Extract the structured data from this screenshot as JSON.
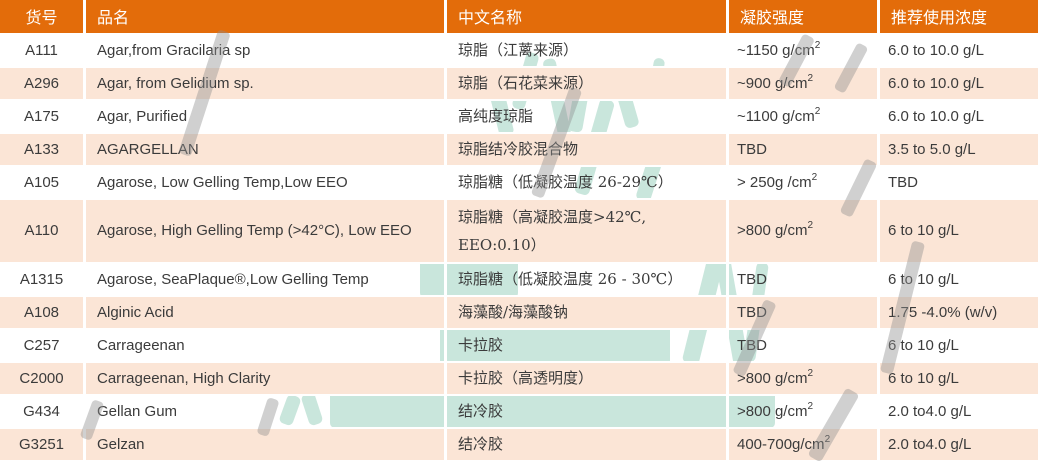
{
  "colors": {
    "header_bg": "#E36C0A",
    "header_text": "#FFFFFF",
    "row_stripe": "#FBE5D6",
    "body_text": "#3B3B3B",
    "watermark_teal": "#C9E6DC",
    "watermark_gray": "#8F8F8F",
    "divider_white": "#FFFFFF"
  },
  "table": {
    "columns": [
      {
        "key": "code",
        "label": "货号"
      },
      {
        "key": "name",
        "label": "品名"
      },
      {
        "key": "cn",
        "label": "中文名称"
      },
      {
        "key": "strength",
        "label": "凝胶强度"
      },
      {
        "key": "conc",
        "label": "推荐使用浓度"
      }
    ],
    "rows": [
      {
        "code": "A111",
        "name": "Agar,from Gracilaria sp",
        "cn": "琼脂（江蓠来源）",
        "strength": "~1150 g/cm",
        "strength_sup": "2",
        "conc": "6.0 to 10.0 g/L"
      },
      {
        "code": "A296",
        "name": "Agar, from Gelidium sp.",
        "cn": "琼脂（石花菜来源）",
        "strength": "~900 g/cm",
        "strength_sup": "2",
        "conc": "6.0 to 10.0 g/L"
      },
      {
        "code": "A175",
        "name": "Agar, Purified",
        "cn": "高纯度琼脂",
        "strength": "~1100 g/cm",
        "strength_sup": "2",
        "conc": "6.0 to 10.0 g/L"
      },
      {
        "code": "A133",
        "name": "AGARGELLAN",
        "cn": "琼脂结冷胶混合物",
        "strength": "TBD",
        "strength_sup": "",
        "conc": "3.5 to 5.0 g/L"
      },
      {
        "code": "A105",
        "name": "Agarose, Low Gelling Temp,Low EEO",
        "cn": "琼脂糖（低凝胶温度 26-29℃）",
        "strength": "> 250g /cm",
        "strength_sup": "2",
        "conc": "TBD"
      },
      {
        "code": "A110",
        "name": "Agarose, High Gelling Temp (>42°C), Low EEO",
        "cn": "琼脂糖（高凝胶温度>42℃, EEO:0.10）",
        "strength": ">800 g/cm",
        "strength_sup": "2",
        "conc": "6 to 10 g/L",
        "tall": true
      },
      {
        "code": "A1315",
        "name": "Agarose, SeaPlaque®,Low Gelling Temp",
        "cn": "琼脂糖（低凝胶温度 26 - 30℃）",
        "strength": "TBD",
        "strength_sup": "",
        "conc": "6 to 10 g/L"
      },
      {
        "code": "A108",
        "name": "Alginic Acid",
        "cn": "海藻酸/海藻酸钠",
        "strength": "TBD",
        "strength_sup": "",
        "conc": "1.75 -4.0% (w/v)"
      },
      {
        "code": "C257",
        "name": "Carrageenan",
        "cn": "卡拉胶",
        "strength": "TBD",
        "strength_sup": "",
        "conc": "6 to 10 g/L"
      },
      {
        "code": "C2000",
        "name": "Carrageenan, High Clarity",
        "cn": "卡拉胶（高透明度）",
        "strength": ">800 g/cm",
        "strength_sup": "2",
        "conc": "6 to 10 g/L"
      },
      {
        "code": "G434",
        "name": "Gellan Gum",
        "cn": "结冷胶",
        "strength": ">800 g/cm",
        "strength_sup": "2",
        "conc": "2.0 to4.0 g/L"
      },
      {
        "code": "G3251",
        "name": "Gelzan",
        "cn": "结冷胶",
        "strength": "400-700g/cm",
        "strength_sup": "2",
        "conc": "2.0 to4.0 g/L"
      }
    ]
  }
}
